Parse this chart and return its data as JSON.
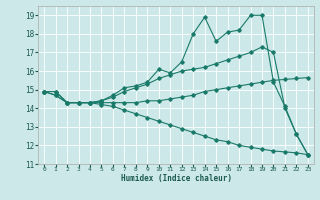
{
  "xlabel": "Humidex (Indice chaleur)",
  "ylabel": "",
  "bg_color": "#cce8e8",
  "grid_color": "#ffffff",
  "line_color": "#1a7a6a",
  "xlim": [
    -0.5,
    23.5
  ],
  "ylim": [
    11,
    19.5
  ],
  "yticks": [
    11,
    12,
    13,
    14,
    15,
    16,
    17,
    18,
    19
  ],
  "xticks": [
    0,
    1,
    2,
    3,
    4,
    5,
    6,
    7,
    8,
    9,
    10,
    11,
    12,
    13,
    14,
    15,
    16,
    17,
    18,
    19,
    20,
    21,
    22,
    23
  ],
  "line1_x": [
    0,
    1,
    2,
    3,
    4,
    5,
    6,
    7,
    8,
    9,
    10,
    11,
    12,
    13,
    14,
    15,
    16,
    17,
    18,
    19,
    20,
    21,
    22,
    23
  ],
  "line1_y": [
    14.9,
    14.7,
    14.3,
    14.3,
    14.3,
    14.4,
    14.6,
    14.9,
    15.1,
    15.3,
    15.6,
    15.8,
    16.0,
    16.1,
    16.2,
    16.4,
    16.6,
    16.8,
    17.0,
    17.3,
    17.0,
    14.0,
    12.6,
    11.5
  ],
  "line2_x": [
    0,
    1,
    2,
    3,
    4,
    5,
    6,
    7,
    8,
    9,
    10,
    11,
    12,
    13,
    14,
    15,
    16,
    17,
    18,
    19,
    20,
    21,
    22,
    23
  ],
  "line2_y": [
    14.9,
    14.7,
    14.3,
    14.3,
    14.3,
    14.4,
    14.7,
    15.1,
    15.2,
    15.4,
    16.1,
    15.9,
    16.5,
    18.0,
    18.9,
    17.6,
    18.1,
    18.2,
    19.0,
    19.0,
    15.4,
    14.1,
    12.6,
    11.5
  ],
  "line3_x": [
    0,
    1,
    2,
    3,
    4,
    5,
    6,
    7,
    8,
    9,
    10,
    11,
    12,
    13,
    14,
    15,
    16,
    17,
    18,
    19,
    20,
    21,
    22,
    23
  ],
  "line3_y": [
    14.9,
    14.9,
    14.3,
    14.3,
    14.3,
    14.3,
    14.3,
    14.3,
    14.3,
    14.4,
    14.4,
    14.5,
    14.6,
    14.7,
    14.9,
    15.0,
    15.1,
    15.2,
    15.3,
    15.4,
    15.5,
    15.55,
    15.6,
    15.65
  ],
  "line4_x": [
    0,
    1,
    2,
    3,
    4,
    5,
    6,
    7,
    8,
    9,
    10,
    11,
    12,
    13,
    14,
    15,
    16,
    17,
    18,
    19,
    20,
    21,
    22,
    23
  ],
  "line4_y": [
    14.9,
    14.9,
    14.3,
    14.3,
    14.3,
    14.2,
    14.1,
    13.9,
    13.7,
    13.5,
    13.3,
    13.1,
    12.9,
    12.7,
    12.5,
    12.3,
    12.2,
    12.0,
    11.9,
    11.8,
    11.7,
    11.65,
    11.6,
    11.5
  ]
}
